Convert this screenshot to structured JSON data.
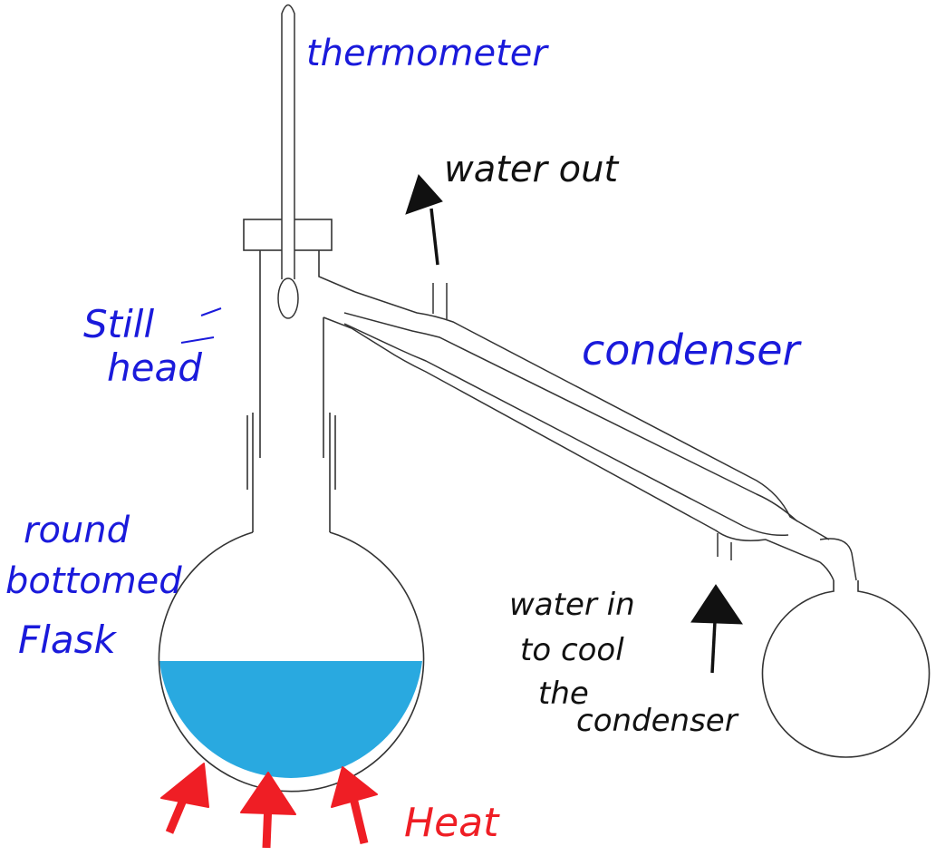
{
  "colors": {
    "annotation_blue": "#1a1adb",
    "annotation_black": "#111111",
    "heat_red": "#ef1e25",
    "liquid": "#29a9e0",
    "glass": "#333333"
  },
  "labels": {
    "thermometer": "thermometer",
    "water_out": "water out",
    "still_head_1": "Still",
    "still_head_2": "head",
    "condenser": "condenser",
    "flask_1": "round",
    "flask_2": "bottomed",
    "flask_3": "Flask",
    "water_in_1": "water in",
    "water_in_2": "to cool",
    "water_in_3": "the",
    "water_in_4": "condenser",
    "heat": "Heat"
  }
}
